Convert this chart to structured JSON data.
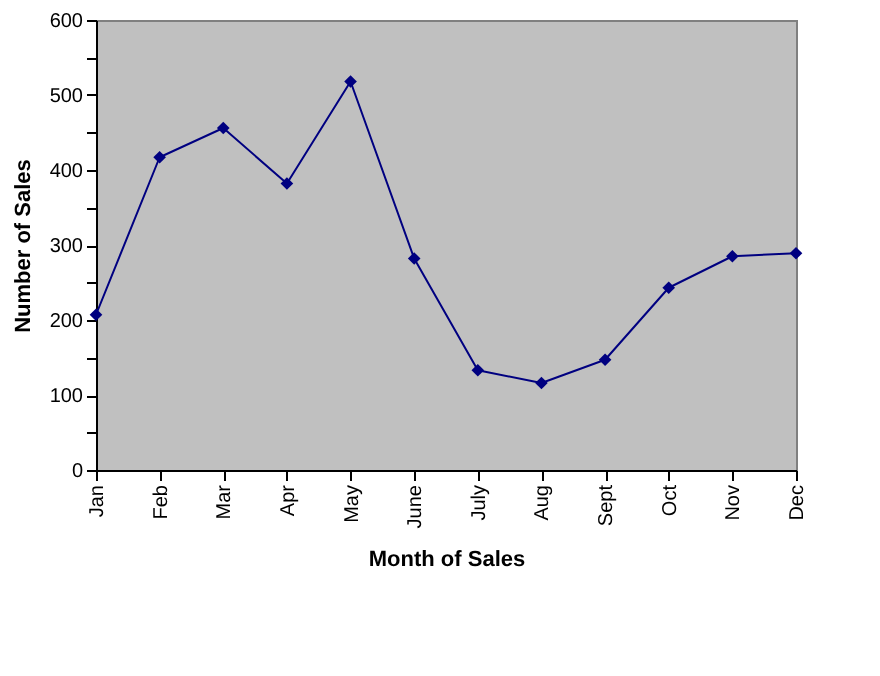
{
  "chart_data": {
    "type": "line",
    "xlabel": "Month of Sales",
    "ylabel": "Number of Sales",
    "categories": [
      "Jan",
      "Feb",
      "Mar",
      "Apr",
      "May",
      "June",
      "July",
      "Aug",
      "Sept",
      "Oct",
      "Nov",
      "Dec"
    ],
    "series": [
      {
        "color": "#000080",
        "values": [
          207,
          417,
          456,
          382,
          518,
          282,
          133,
          116,
          147,
          243,
          285,
          289
        ]
      }
    ],
    "ylim": [
      0,
      600
    ],
    "yticks": [
      0,
      {
        "value": 50,
        "label": null
      },
      100,
      {
        "value": 150,
        "label": null
      },
      200,
      {
        "value": 250,
        "label": null
      },
      300,
      {
        "value": 350,
        "label": null
      },
      400,
      {
        "value": 450,
        "label": null
      },
      500,
      {
        "value": 550,
        "label": null
      },
      600
    ],
    "grid": false,
    "legend": false,
    "marker": "diamond",
    "line_style": "solid"
  }
}
